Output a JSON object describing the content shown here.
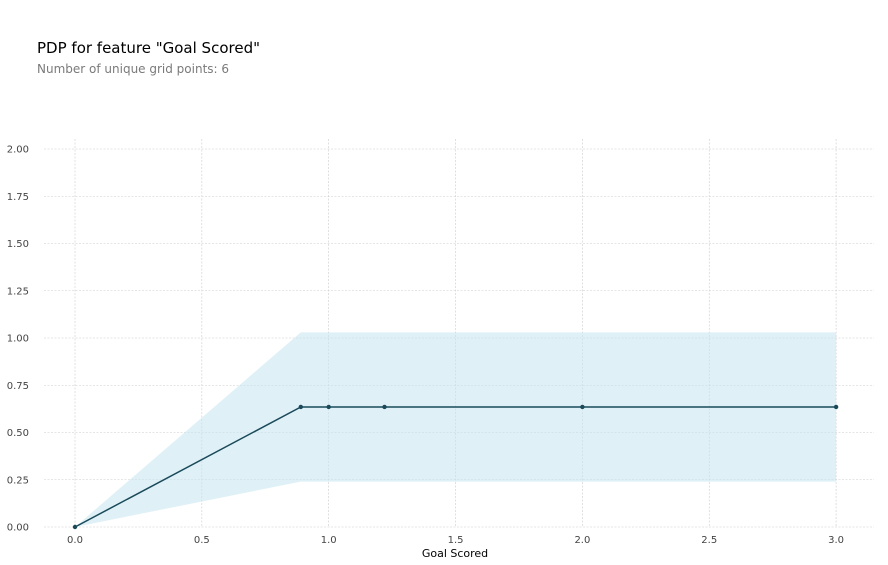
{
  "header": {
    "title": "PDP for feature \"Goal Scored\"",
    "subtitle": "Number of unique grid points: 6"
  },
  "chart_data": {
    "type": "line",
    "title": "PDP for feature \"Goal Scored\"",
    "subtitle": "Number of unique grid points: 6",
    "xlabel": "Goal Scored",
    "ylabel": "",
    "xlim": [
      -0.12,
      3.15
    ],
    "ylim": [
      0,
      2.05
    ],
    "x_ticks": [
      0.0,
      0.5,
      1.0,
      1.5,
      2.0,
      2.5,
      3.0
    ],
    "x_tick_labels": [
      "0.0",
      "0.5",
      "1.0",
      "1.5",
      "2.0",
      "2.5",
      "3.0"
    ],
    "y_ticks": [
      0.0,
      0.25,
      0.5,
      0.75,
      1.0,
      1.25,
      1.5,
      1.75,
      2.0
    ],
    "y_tick_labels": [
      "0.00",
      "0.25",
      "0.50",
      "0.75",
      "1.00",
      "1.25",
      "1.50",
      "1.75",
      "2.00"
    ],
    "grid": true,
    "legend": "none",
    "series": [
      {
        "x": [
          0.0,
          0.89,
          1.0,
          1.22,
          2.0,
          3.0
        ],
        "y": [
          0.0,
          0.635,
          0.635,
          0.635,
          0.635,
          0.635
        ],
        "lower": [
          0.0,
          0.24,
          0.24,
          0.24,
          0.24,
          0.24
        ],
        "upper": [
          0.0,
          1.03,
          1.03,
          1.03,
          1.03,
          1.03
        ]
      }
    ],
    "colors": {
      "line": "#1a4a5a",
      "band": "#c5e6f1",
      "grid": "#cccccc"
    }
  }
}
